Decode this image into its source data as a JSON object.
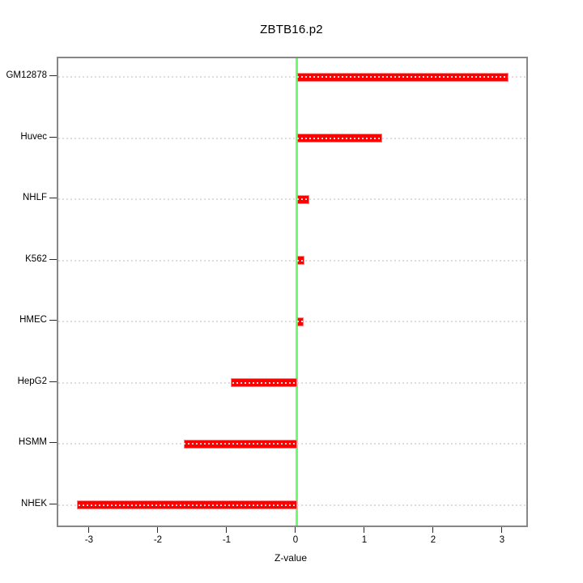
{
  "chart_data": {
    "type": "bar",
    "orientation": "horizontal",
    "title": "ZBTB16.p2",
    "xlabel": "Z-value",
    "ylabel": "",
    "categories": [
      "GM12878",
      "Huvec",
      "NHLF",
      "K562",
      "HMEC",
      "HepG2",
      "HSMM",
      "NHEK"
    ],
    "values": [
      3.07,
      1.24,
      0.18,
      0.11,
      0.09,
      -0.96,
      -1.65,
      -3.2
    ],
    "x_ticks": [
      -3,
      -2,
      -1,
      0,
      1,
      2,
      3
    ],
    "xlim": [
      -3.47,
      3.33
    ],
    "zero_reference_line": 0,
    "grid": "horizontal-dotted",
    "legend_position": "none",
    "colors": {
      "bar": "#ff0000",
      "bar_border": "#ff8080",
      "zero_line": "#6aff6a",
      "grid": "#dcdcdc",
      "box": "#878787",
      "tick": "#2b2b2b",
      "text": "#000000",
      "background": "#ffffff"
    }
  }
}
